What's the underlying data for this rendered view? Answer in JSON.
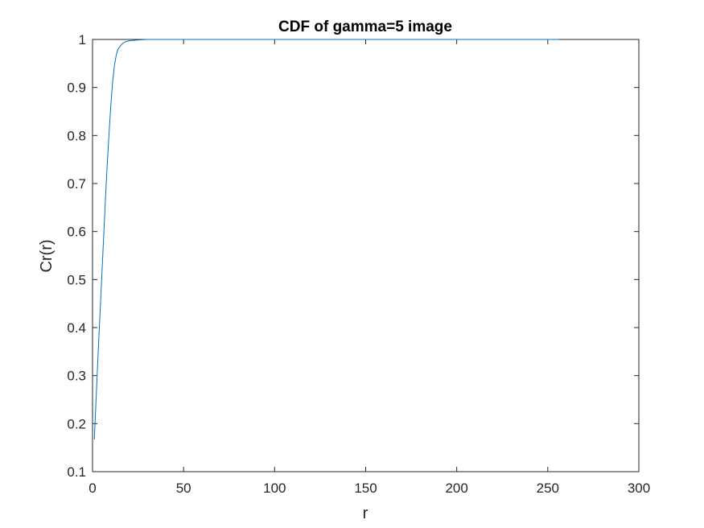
{
  "chart_data": {
    "type": "line",
    "title": "CDF of gamma=5 image",
    "xlabel": "r",
    "ylabel": "Cr(r)",
    "xlim": [
      0,
      300
    ],
    "ylim": [
      0.1,
      1
    ],
    "xticks": [
      0,
      50,
      100,
      150,
      200,
      250,
      300
    ],
    "xtick_labels": [
      "0",
      "50",
      "100",
      "150",
      "200",
      "250",
      "300"
    ],
    "yticks": [
      0.1,
      0.2,
      0.3,
      0.4,
      0.5,
      0.6,
      0.7,
      0.8,
      0.9,
      1
    ],
    "ytick_labels": [
      "0.1",
      "0.2",
      "0.3",
      "0.4",
      "0.5",
      "0.6",
      "0.7",
      "0.8",
      "0.9",
      "1"
    ],
    "grid": false,
    "box": true,
    "series": [
      {
        "color": "#0072BD",
        "x": [
          1,
          2,
          3,
          4,
          5,
          6,
          7,
          8,
          9,
          10,
          11,
          12,
          13,
          14,
          16,
          18,
          20,
          22,
          25,
          30,
          40,
          60,
          100,
          150,
          200,
          256
        ],
        "y": [
          0.167,
          0.255,
          0.34,
          0.42,
          0.5,
          0.58,
          0.66,
          0.735,
          0.8,
          0.86,
          0.91,
          0.945,
          0.967,
          0.98,
          0.99,
          0.995,
          0.997,
          0.998,
          0.999,
          1.0,
          1.0,
          1.0,
          1.0,
          1.0,
          1.0,
          1.0
        ]
      }
    ]
  }
}
